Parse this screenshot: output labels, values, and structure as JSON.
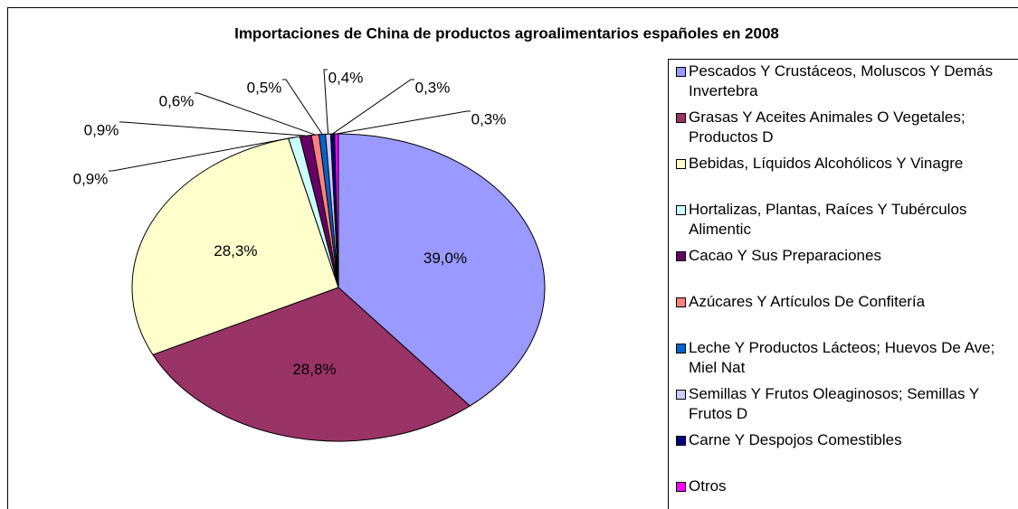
{
  "chart_data": {
    "type": "pie",
    "title": "Importaciones de China de productos agroalimentarios españoles en 2008",
    "categories": [
      "Pescados Y Crustáceos, Moluscos Y Demás Invertebra",
      "Grasas Y Aceites Animales O Vegetales; Productos D",
      "Bebidas, Líquidos Alcohólicos Y Vinagre",
      "Hortalizas, Plantas, Raíces Y Tubérculos Alimentic",
      "Cacao Y Sus Preparaciones",
      "Azúcares Y Artículos De Confitería",
      "Leche Y Productos Lácteos; Huevos De Ave; Miel Nat",
      "Semillas Y Frutos Oleaginosos; Semillas Y Frutos D",
      "Carne Y Despojos Comestibles",
      "Otros"
    ],
    "values": [
      39.0,
      28.8,
      28.3,
      0.9,
      0.9,
      0.6,
      0.5,
      0.4,
      0.3,
      0.3
    ],
    "value_labels": [
      "39,0%",
      "28,8%",
      "28,3%",
      "0,9%",
      "0,9%",
      "0,6%",
      "0,5%",
      "0,4%",
      "0,3%",
      "0,3%"
    ],
    "colors": [
      "#9999ff",
      "#993366",
      "#ffffcc",
      "#ccffff",
      "#660066",
      "#ff8080",
      "#0066cc",
      "#ccccff",
      "#000080",
      "#ff00ff"
    ],
    "legend": "right"
  }
}
